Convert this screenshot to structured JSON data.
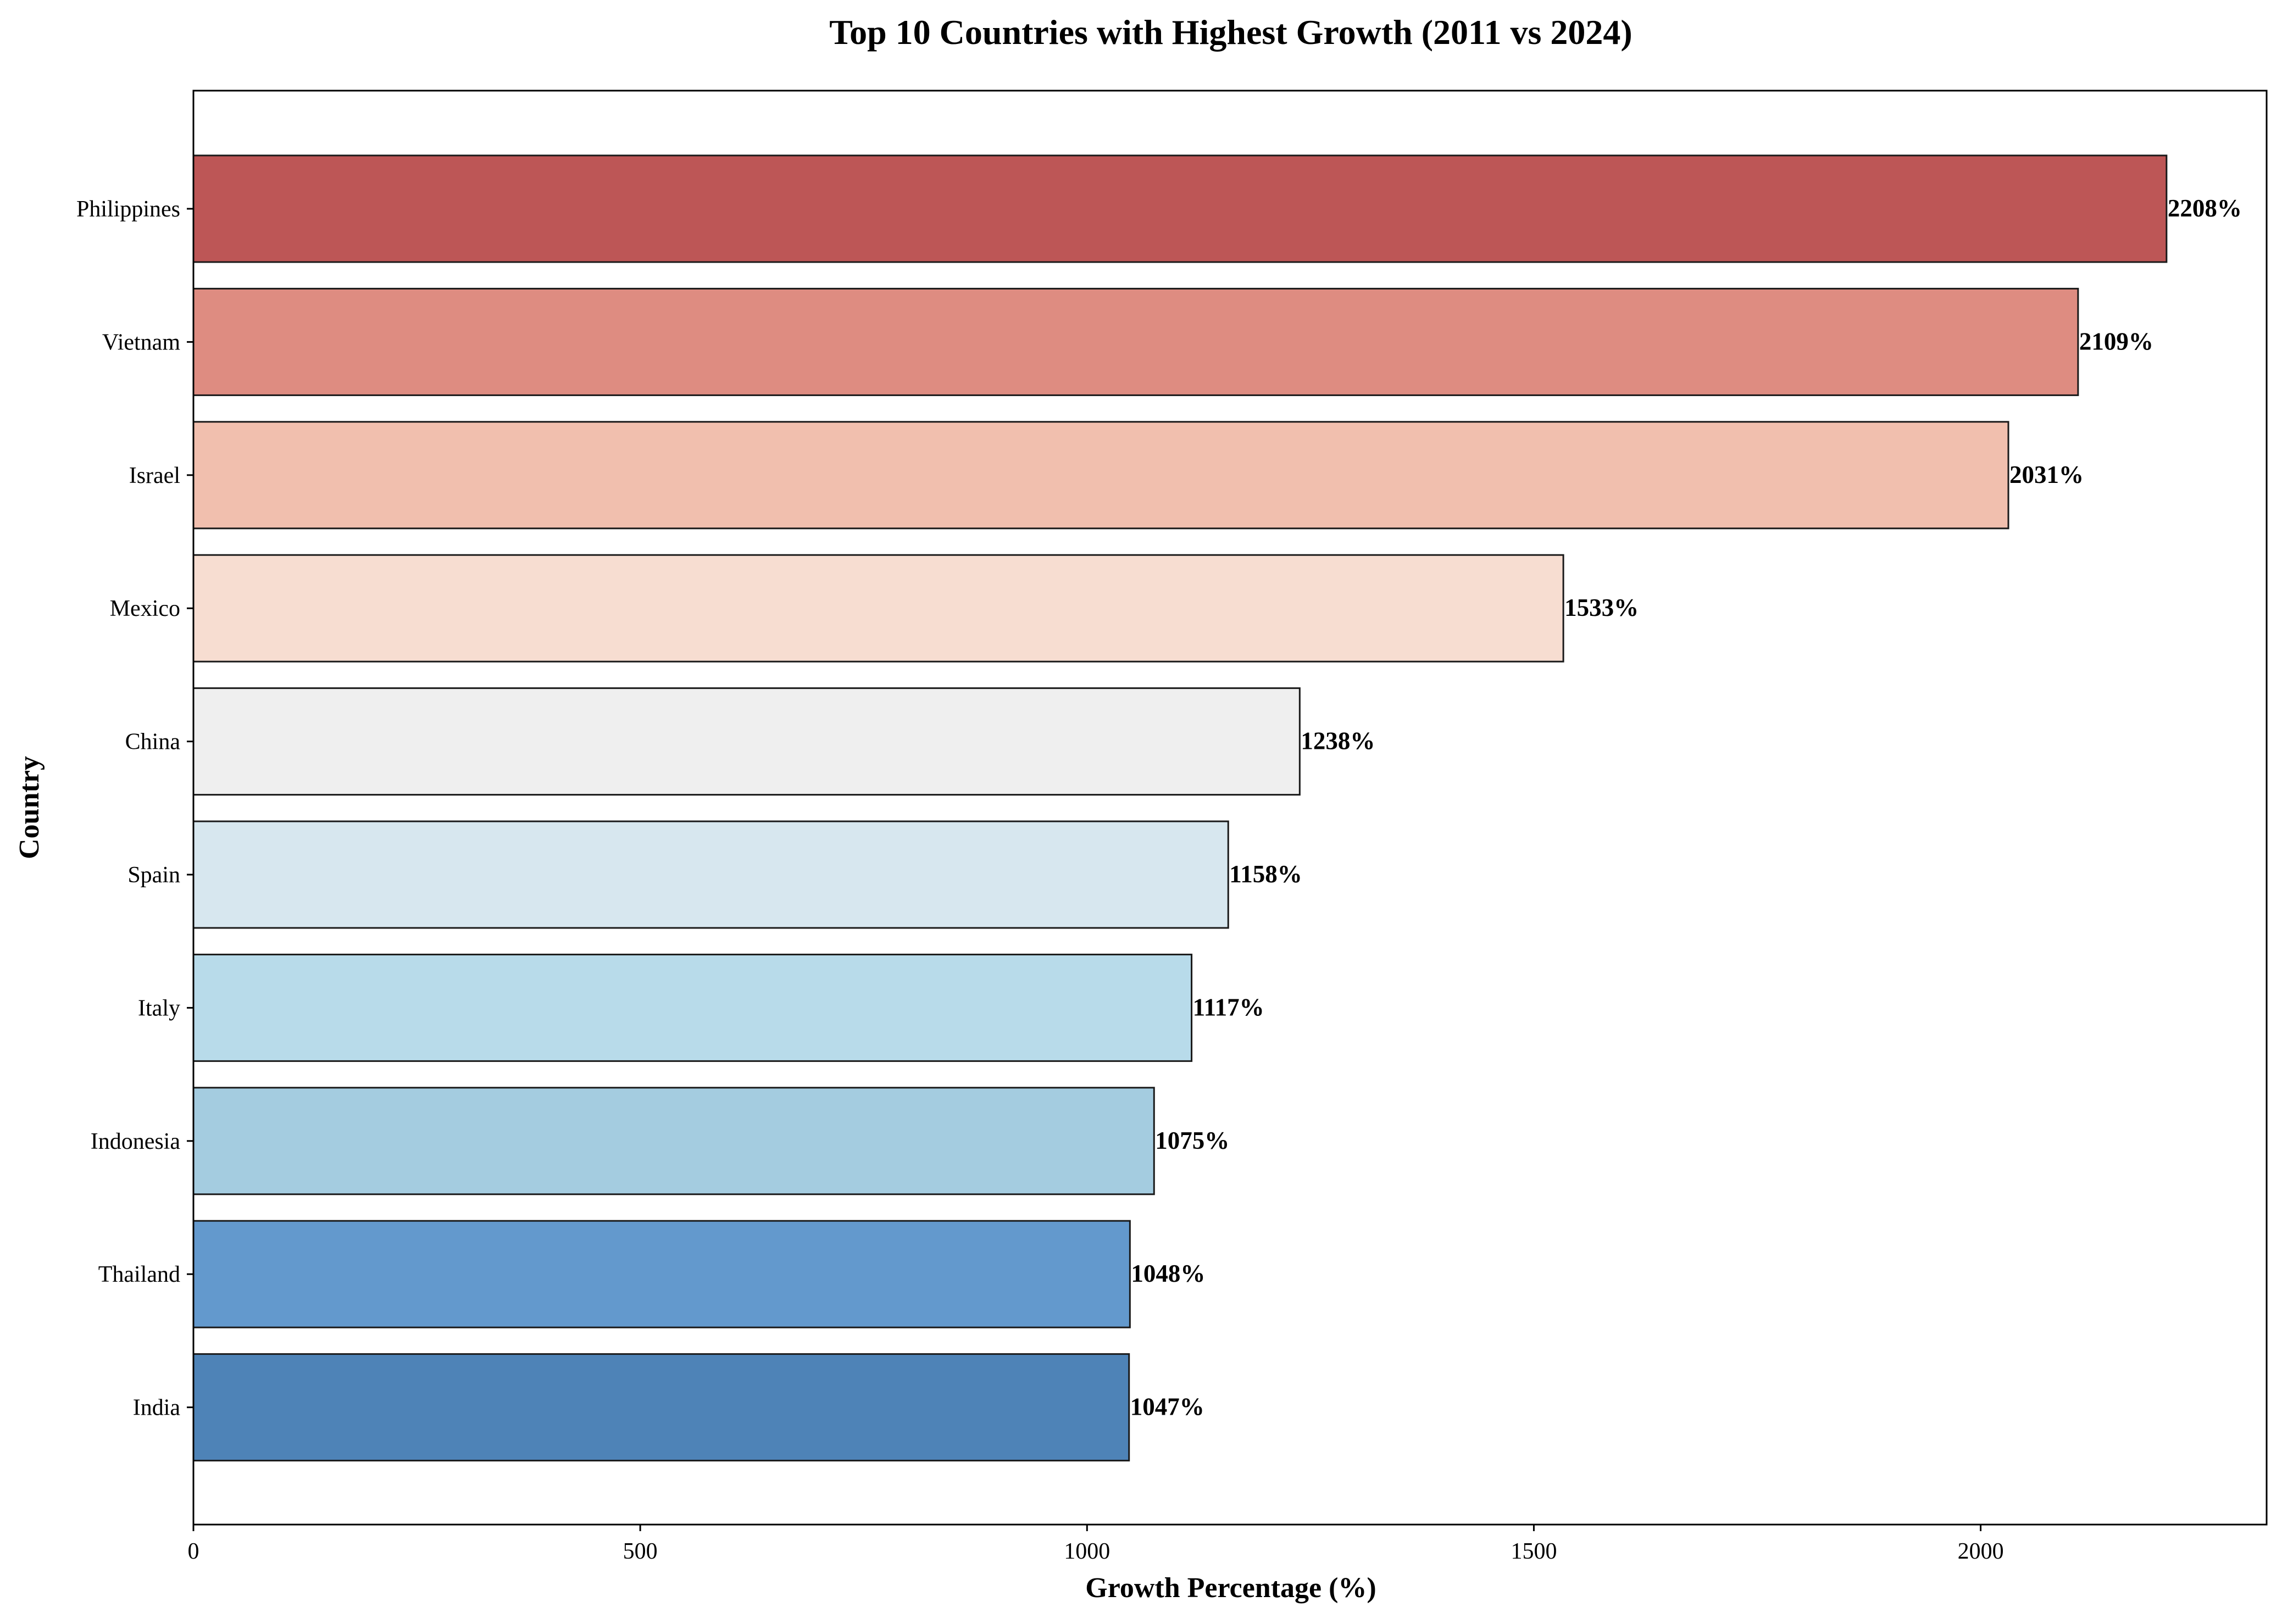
{
  "chart_data": {
    "type": "bar",
    "orientation": "horizontal",
    "title": "Top 10 Countries with Highest Growth (2011 vs 2024)",
    "xlabel": "Growth Percentage (%)",
    "ylabel": "Country",
    "xlim": [
      0,
      2320
    ],
    "xticks": [
      0,
      500,
      1000,
      1500,
      2000
    ],
    "xtick_labels": [
      "0",
      "500",
      "1000",
      "1500",
      "2000"
    ],
    "grid": false,
    "categories": [
      "Philippines",
      "Vietnam",
      "Israel",
      "Mexico",
      "China",
      "Spain",
      "Italy",
      "Indonesia",
      "Thailand",
      "India"
    ],
    "values": [
      2208,
      2109,
      2031,
      1533,
      1238,
      1158,
      1117,
      1075,
      1048,
      1047
    ],
    "value_labels": [
      "2208%",
      "2109%",
      "2031%",
      "1533%",
      "1238%",
      "1158%",
      "1117%",
      "1075%",
      "1048%",
      "1047%"
    ],
    "colors": [
      "#bd5656",
      "#de8c81",
      "#f1bfae",
      "#f7ddd1",
      "#efefef",
      "#d7e7ef",
      "#b8dbea",
      "#a4cce0",
      "#6399cd",
      "#4e83b7"
    ],
    "edge_color": "#1a1a1a"
  }
}
